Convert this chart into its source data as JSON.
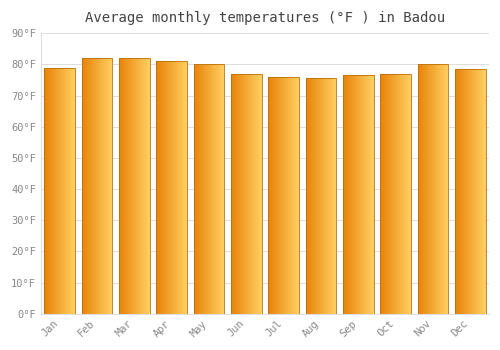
{
  "title": "Average monthly temperatures (°F ) in Badou",
  "months": [
    "Jan",
    "Feb",
    "Mar",
    "Apr",
    "May",
    "Jun",
    "Jul",
    "Aug",
    "Sep",
    "Oct",
    "Nov",
    "Dec"
  ],
  "values": [
    79,
    82,
    82,
    81,
    80,
    77,
    76,
    75.5,
    76.5,
    77,
    80,
    78.5
  ],
  "ylim": [
    0,
    90
  ],
  "yticks": [
    0,
    10,
    20,
    30,
    40,
    50,
    60,
    70,
    80,
    90
  ],
  "bar_color_left": "#E8820A",
  "bar_color_right": "#FFD060",
  "bar_edge_color": "#B8720A",
  "background_color": "#ffffff",
  "grid_color": "#dddddd",
  "title_fontsize": 10,
  "tick_fontsize": 7.5,
  "font_color": "#888888"
}
